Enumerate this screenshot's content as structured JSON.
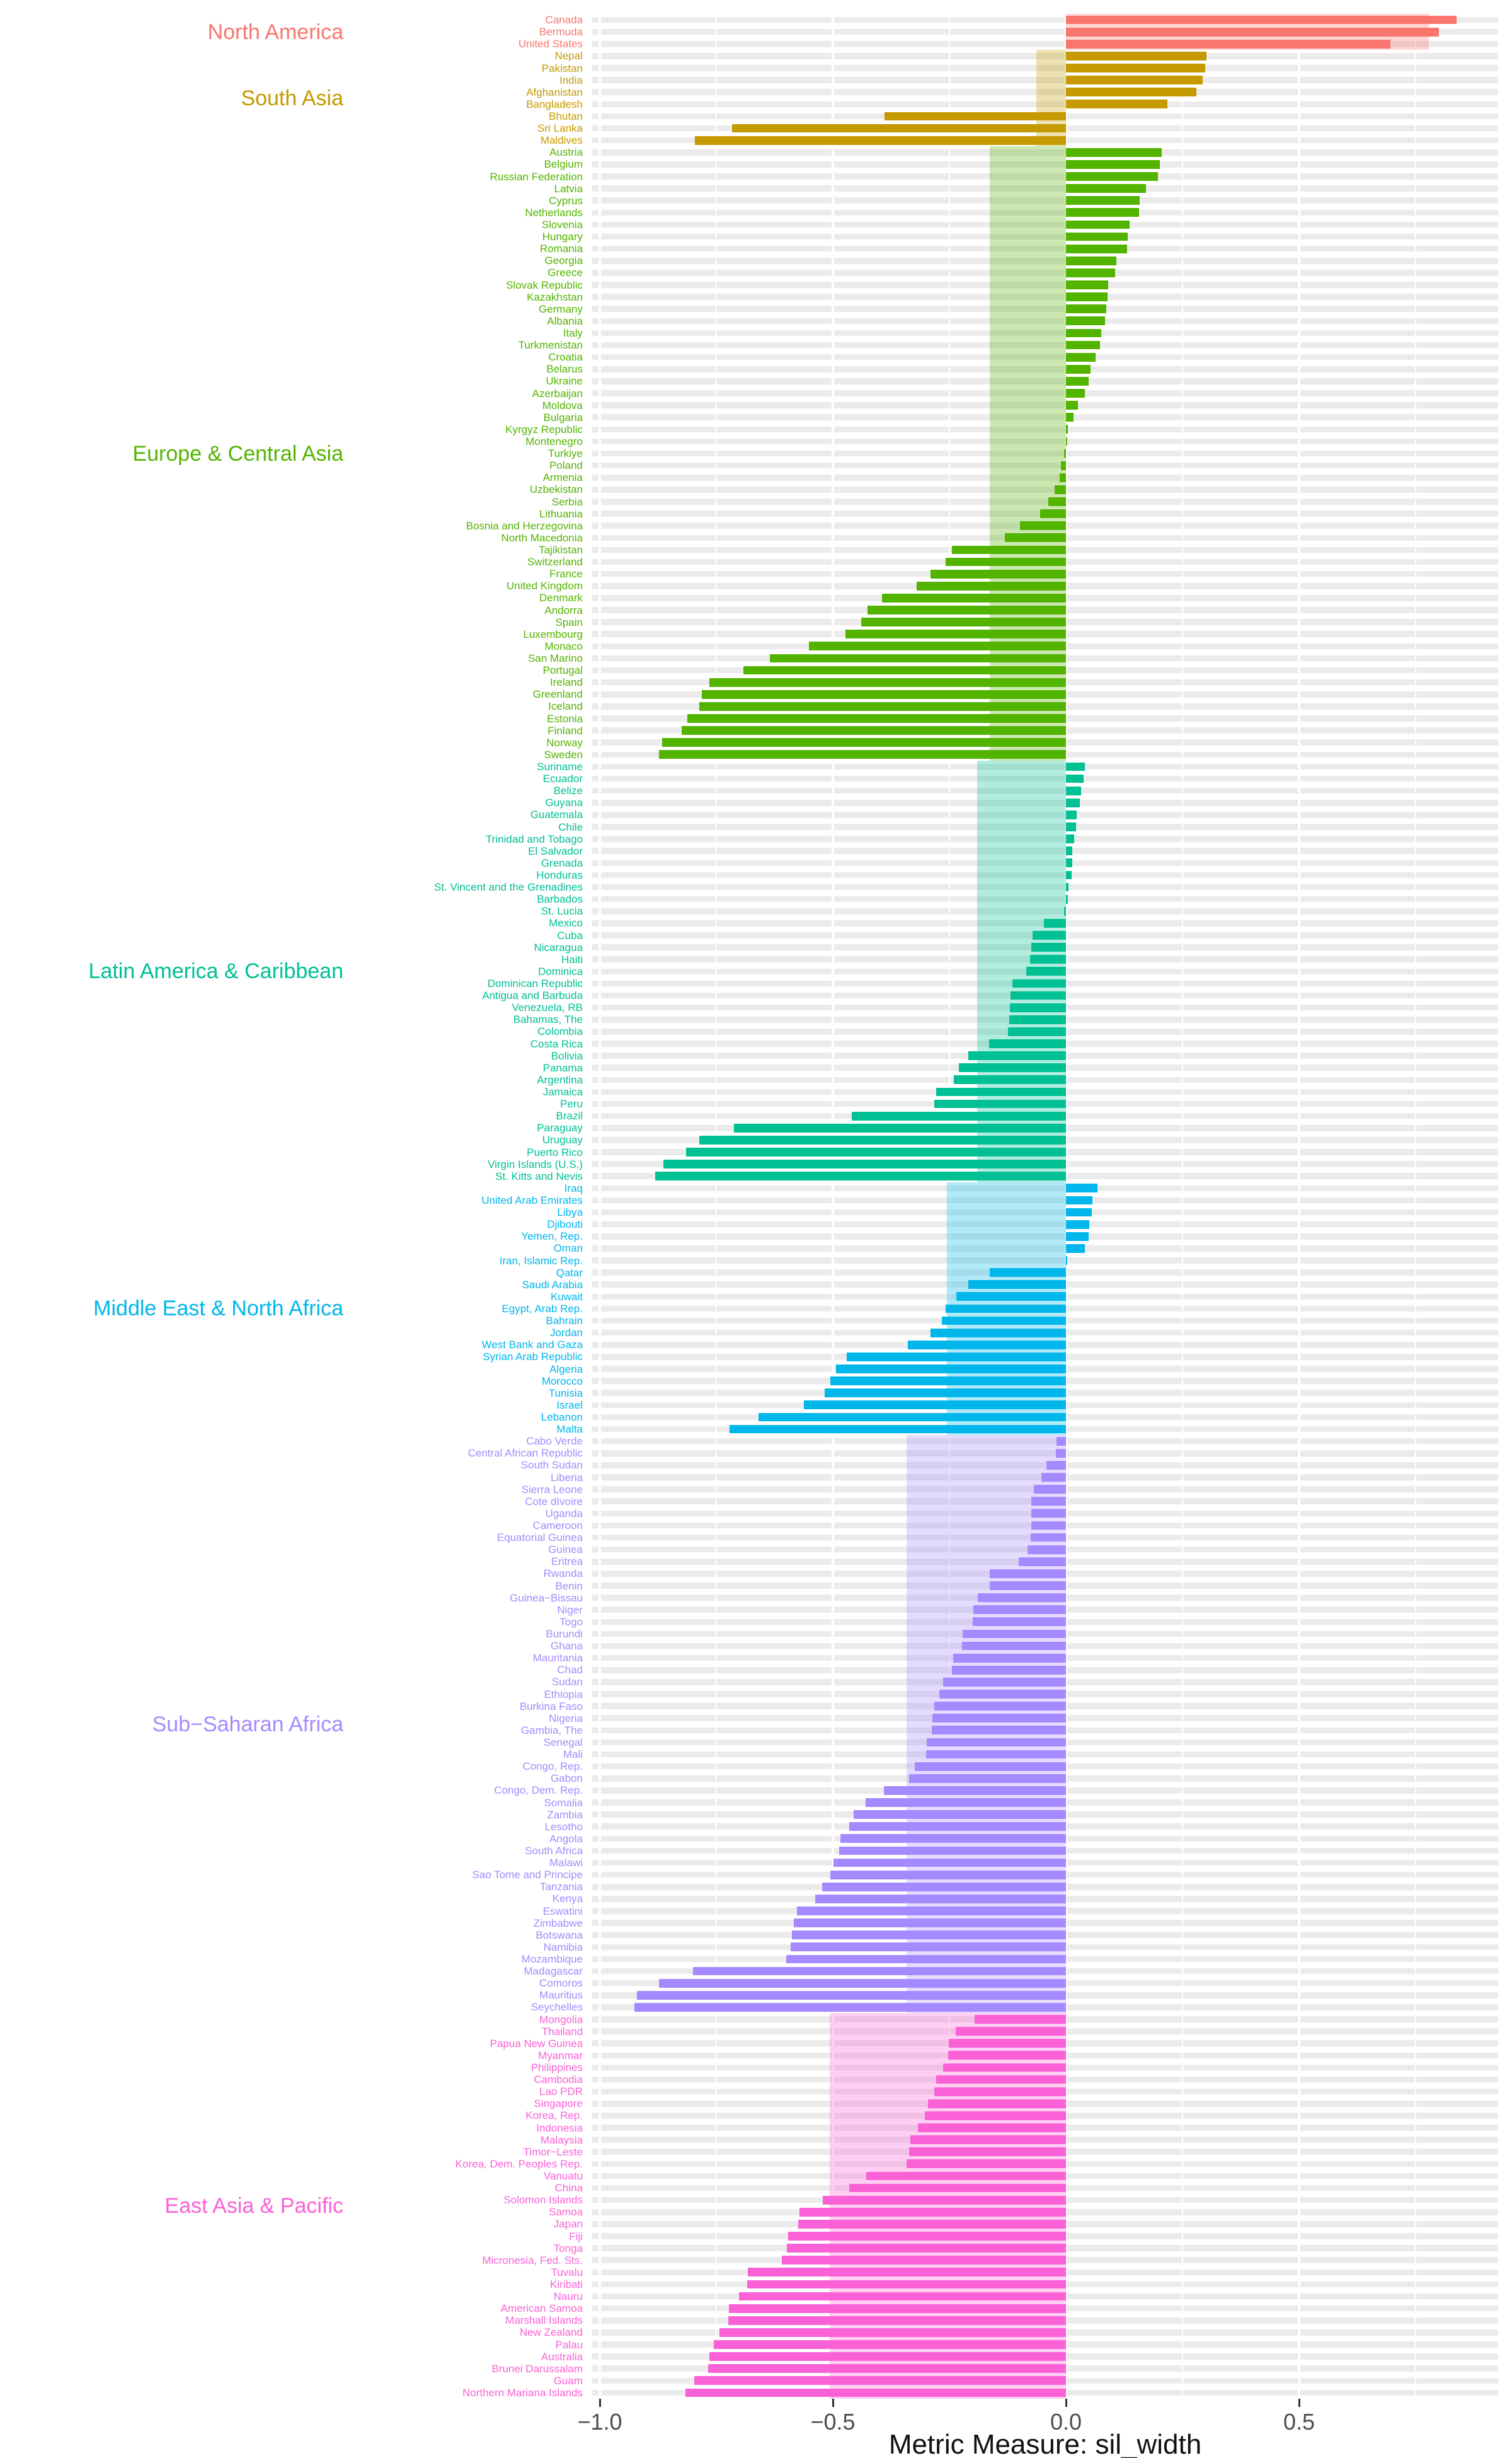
{
  "axis": {
    "title": "Metric Measure: sil_width",
    "ticks": [
      {
        "label": "−1.0",
        "value": -1.0
      },
      {
        "label": "−0.5",
        "value": -0.5
      },
      {
        "label": "0.0",
        "value": 0.0
      },
      {
        "label": "0.5",
        "value": 0.5
      }
    ],
    "minor_ticks": [
      -0.75,
      -0.25,
      0.25,
      0.75
    ]
  },
  "chart_data": {
    "type": "bar",
    "orientation": "horizontal",
    "title": "",
    "xlabel": "Metric Measure: sil_width",
    "ylabel": "",
    "xlim": [
      -1.016,
      0.927
    ],
    "x_ticks": [
      -1.0,
      -0.5,
      0.0,
      0.5
    ],
    "grid": "white-on-gray-stripes",
    "legend_position": "none",
    "panel_stripe_color": "#EBEBEB",
    "groups": [
      {
        "name": "North America",
        "color": "#F8766D",
        "avg_sil_width": 0.778,
        "countries": [
          {
            "label": "Canada",
            "value": 0.838
          },
          {
            "label": "Bermuda",
            "value": 0.8
          },
          {
            "label": "United States",
            "value": 0.696
          }
        ]
      },
      {
        "name": "South Asia",
        "color": "#C49A00",
        "avg_sil_width": -0.064,
        "countries": [
          {
            "label": "Nepal",
            "value": 0.302
          },
          {
            "label": "Pakistan",
            "value": 0.298
          },
          {
            "label": "India",
            "value": 0.293
          },
          {
            "label": "Afghanistan",
            "value": 0.28
          },
          {
            "label": "Bangladesh",
            "value": 0.218
          },
          {
            "label": "Bhutan",
            "value": -0.389
          },
          {
            "label": "Sri Lanka",
            "value": -0.716
          },
          {
            "label": "Maldives",
            "value": -0.796
          }
        ]
      },
      {
        "name": "Europe & Central Asia",
        "color": "#53B400",
        "avg_sil_width": -0.164,
        "countries": [
          {
            "label": "Austria",
            "value": 0.205
          },
          {
            "label": "Belgium",
            "value": 0.201
          },
          {
            "label": "Russian Federation",
            "value": 0.197
          },
          {
            "label": "Latvia",
            "value": 0.171
          },
          {
            "label": "Cyprus",
            "value": 0.158
          },
          {
            "label": "Netherlands",
            "value": 0.157
          },
          {
            "label": "Slovenia",
            "value": 0.137
          },
          {
            "label": "Hungary",
            "value": 0.133
          },
          {
            "label": "Romania",
            "value": 0.131
          },
          {
            "label": "Georgia",
            "value": 0.108
          },
          {
            "label": "Greece",
            "value": 0.106
          },
          {
            "label": "Slovak Republic",
            "value": 0.09
          },
          {
            "label": "Kazakhstan",
            "value": 0.089
          },
          {
            "label": "Germany",
            "value": 0.087
          },
          {
            "label": "Albania",
            "value": 0.084
          },
          {
            "label": "Italy",
            "value": 0.075
          },
          {
            "label": "Turkmenistan",
            "value": 0.073
          },
          {
            "label": "Croatia",
            "value": 0.063
          },
          {
            "label": "Belarus",
            "value": 0.053
          },
          {
            "label": "Ukraine",
            "value": 0.049
          },
          {
            "label": "Azerbaijan",
            "value": 0.041
          },
          {
            "label": "Moldova",
            "value": 0.025
          },
          {
            "label": "Bulgaria",
            "value": 0.016
          },
          {
            "label": "Kyrgyz Republic",
            "value": 0.004
          },
          {
            "label": "Montenegro",
            "value": 0.001
          },
          {
            "label": "Turkiye",
            "value": -0.004
          },
          {
            "label": "Poland",
            "value": -0.011
          },
          {
            "label": "Armenia",
            "value": -0.013
          },
          {
            "label": "Uzbekistan",
            "value": -0.024
          },
          {
            "label": "Serbia",
            "value": -0.038
          },
          {
            "label": "Lithuania",
            "value": -0.056
          },
          {
            "label": "Bosnia and Herzegovina",
            "value": -0.099
          },
          {
            "label": "North Macedonia",
            "value": -0.131
          },
          {
            "label": "Tajikistan",
            "value": -0.245
          },
          {
            "label": "Switzerland",
            "value": -0.258
          },
          {
            "label": "France",
            "value": -0.29
          },
          {
            "label": "United Kingdom",
            "value": -0.32
          },
          {
            "label": "Denmark",
            "value": -0.395
          },
          {
            "label": "Andorra",
            "value": -0.426
          },
          {
            "label": "Spain",
            "value": -0.439
          },
          {
            "label": "Luxembourg",
            "value": -0.473
          },
          {
            "label": "Monaco",
            "value": -0.552
          },
          {
            "label": "San Marino",
            "value": -0.635
          },
          {
            "label": "Portugal",
            "value": -0.692
          },
          {
            "label": "Ireland",
            "value": -0.765
          },
          {
            "label": "Greenland",
            "value": -0.781
          },
          {
            "label": "Iceland",
            "value": -0.787
          },
          {
            "label": "Estonia",
            "value": -0.812
          },
          {
            "label": "Finland",
            "value": -0.825
          },
          {
            "label": "Norway",
            "value": -0.866
          },
          {
            "label": "Sweden",
            "value": -0.873
          }
        ]
      },
      {
        "name": "Latin America & Caribbean",
        "color": "#00C094",
        "avg_sil_width": -0.19,
        "countries": [
          {
            "label": "Suriname",
            "value": 0.04
          },
          {
            "label": "Ecuador",
            "value": 0.038
          },
          {
            "label": "Belize",
            "value": 0.033
          },
          {
            "label": "Guyana",
            "value": 0.03
          },
          {
            "label": "Guatemala",
            "value": 0.023
          },
          {
            "label": "Chile",
            "value": 0.022
          },
          {
            "label": "Trinidad and Tobago",
            "value": 0.017
          },
          {
            "label": "El Salvador",
            "value": 0.014
          },
          {
            "label": "Grenada",
            "value": 0.013
          },
          {
            "label": "Honduras",
            "value": 0.012
          },
          {
            "label": "St. Vincent and the Grenadines",
            "value": 0.005
          },
          {
            "label": "Barbados",
            "value": 0.004
          },
          {
            "label": "St. Lucia",
            "value": -0.004
          },
          {
            "label": "Mexico",
            "value": -0.047
          },
          {
            "label": "Cuba",
            "value": -0.072
          },
          {
            "label": "Nicaragua",
            "value": -0.074
          },
          {
            "label": "Haiti",
            "value": -0.077
          },
          {
            "label": "Dominica",
            "value": -0.085
          },
          {
            "label": "Dominican Republic",
            "value": -0.115
          },
          {
            "label": "Antigua and Barbuda",
            "value": -0.119
          },
          {
            "label": "Venezuela, RB",
            "value": -0.12
          },
          {
            "label": "Bahamas, The",
            "value": -0.122
          },
          {
            "label": "Colombia",
            "value": -0.124
          },
          {
            "label": "Costa Rica",
            "value": -0.165
          },
          {
            "label": "Bolivia",
            "value": -0.21
          },
          {
            "label": "Panama",
            "value": -0.23
          },
          {
            "label": "Argentina",
            "value": -0.241
          },
          {
            "label": "Jamaica",
            "value": -0.278
          },
          {
            "label": "Peru",
            "value": -0.283
          },
          {
            "label": "Brazil",
            "value": -0.46
          },
          {
            "label": "Paraguay",
            "value": -0.712
          },
          {
            "label": "Uruguay",
            "value": -0.786
          },
          {
            "label": "Puerto Rico",
            "value": -0.815
          },
          {
            "label": "Virgin Islands (U.S.)",
            "value": -0.864
          },
          {
            "label": "St. Kitts and Nevis",
            "value": -0.881
          }
        ]
      },
      {
        "name": "Middle East & North Africa",
        "color": "#00B6EB",
        "avg_sil_width": -0.256,
        "countries": [
          {
            "label": "Iraq",
            "value": 0.067
          },
          {
            "label": "United Arab Emirates",
            "value": 0.057
          },
          {
            "label": "Libya",
            "value": 0.056
          },
          {
            "label": "Djibouti",
            "value": 0.05
          },
          {
            "label": "Yemen, Rep.",
            "value": 0.049
          },
          {
            "label": "Oman",
            "value": 0.041
          },
          {
            "label": "Iran, Islamic Rep.",
            "value": 0.003
          },
          {
            "label": "Qatar",
            "value": -0.163
          },
          {
            "label": "Saudi Arabia",
            "value": -0.21
          },
          {
            "label": "Kuwait",
            "value": -0.235
          },
          {
            "label": "Egypt, Arab Rep.",
            "value": -0.258
          },
          {
            "label": "Bahrain",
            "value": -0.266
          },
          {
            "label": "Jordan",
            "value": -0.291
          },
          {
            "label": "West Bank and Gaza",
            "value": -0.339
          },
          {
            "label": "Syrian Arab Republic",
            "value": -0.47
          },
          {
            "label": "Algeria",
            "value": -0.493
          },
          {
            "label": "Morocco",
            "value": -0.506
          },
          {
            "label": "Tunisia",
            "value": -0.517
          },
          {
            "label": "Israel",
            "value": -0.562
          },
          {
            "label": "Lebanon",
            "value": -0.659
          },
          {
            "label": "Malta",
            "value": -0.722
          }
        ]
      },
      {
        "name": "Sub−Saharan Africa",
        "color": "#A58AFF",
        "avg_sil_width": -0.342,
        "countries": [
          {
            "label": "Cabo Verde",
            "value": -0.02
          },
          {
            "label": "Central African Republic",
            "value": -0.021
          },
          {
            "label": "South Sudan",
            "value": -0.042
          },
          {
            "label": "Liberia",
            "value": -0.053
          },
          {
            "label": "Sierra Leone",
            "value": -0.069
          },
          {
            "label": "Cote dIvoire",
            "value": -0.074
          },
          {
            "label": "Uganda",
            "value": -0.075
          },
          {
            "label": "Cameroon",
            "value": -0.075
          },
          {
            "label": "Equatorial Guinea",
            "value": -0.076
          },
          {
            "label": "Guinea",
            "value": -0.083
          },
          {
            "label": "Eritrea",
            "value": -0.101
          },
          {
            "label": "Rwanda",
            "value": -0.163
          },
          {
            "label": "Benin",
            "value": -0.164
          },
          {
            "label": "Guinea−Bissau",
            "value": -0.189
          },
          {
            "label": "Niger",
            "value": -0.199
          },
          {
            "label": "Togo",
            "value": -0.2
          },
          {
            "label": "Burundi",
            "value": -0.222
          },
          {
            "label": "Ghana",
            "value": -0.223
          },
          {
            "label": "Mauritania",
            "value": -0.242
          },
          {
            "label": "Chad",
            "value": -0.245
          },
          {
            "label": "Sudan",
            "value": -0.264
          },
          {
            "label": "Ethiopia",
            "value": -0.272
          },
          {
            "label": "Burkina Faso",
            "value": -0.282
          },
          {
            "label": "Nigeria",
            "value": -0.287
          },
          {
            "label": "Gambia, The",
            "value": -0.288
          },
          {
            "label": "Senegal",
            "value": -0.299
          },
          {
            "label": "Mali",
            "value": -0.3
          },
          {
            "label": "Congo, Rep.",
            "value": -0.325
          },
          {
            "label": "Gabon",
            "value": -0.336
          },
          {
            "label": "Congo, Dem. Rep.",
            "value": -0.39
          },
          {
            "label": "Somalia",
            "value": -0.43
          },
          {
            "label": "Zambia",
            "value": -0.455
          },
          {
            "label": "Lesotho",
            "value": -0.465
          },
          {
            "label": "Angola",
            "value": -0.484
          },
          {
            "label": "South Africa",
            "value": -0.487
          },
          {
            "label": "Malawi",
            "value": -0.498
          },
          {
            "label": "Sao Tome and Principe",
            "value": -0.505
          },
          {
            "label": "Tanzania",
            "value": -0.523
          },
          {
            "label": "Kenya",
            "value": -0.538
          },
          {
            "label": "Eswatini",
            "value": -0.577
          },
          {
            "label": "Zimbabwe",
            "value": -0.584
          },
          {
            "label": "Botswana",
            "value": -0.588
          },
          {
            "label": "Namibia",
            "value": -0.59
          },
          {
            "label": "Mozambique",
            "value": -0.6
          },
          {
            "label": "Madagascar",
            "value": -0.8
          },
          {
            "label": "Comoros",
            "value": -0.873
          },
          {
            "label": "Mauritius",
            "value": -0.92
          },
          {
            "label": "Seychelles",
            "value": -0.926
          }
        ]
      },
      {
        "name": "East Asia & Pacific",
        "color": "#FB61D7",
        "avg_sil_width": -0.507,
        "countries": [
          {
            "label": "Mongolia",
            "value": -0.196
          },
          {
            "label": "Thailand",
            "value": -0.237
          },
          {
            "label": "Papua New Guinea",
            "value": -0.252
          },
          {
            "label": "Myanmar",
            "value": -0.253
          },
          {
            "label": "Philippines",
            "value": -0.264
          },
          {
            "label": "Cambodia",
            "value": -0.278
          },
          {
            "label": "Lao PDR",
            "value": -0.282
          },
          {
            "label": "Singapore",
            "value": -0.296
          },
          {
            "label": "Korea, Rep.",
            "value": -0.303
          },
          {
            "label": "Indonesia",
            "value": -0.318
          },
          {
            "label": "Malaysia",
            "value": -0.334
          },
          {
            "label": "Timor−Leste",
            "value": -0.336
          },
          {
            "label": "Korea, Dem. Peoples Rep.",
            "value": -0.342
          },
          {
            "label": "Vanuatu",
            "value": -0.429
          },
          {
            "label": "China",
            "value": -0.465
          },
          {
            "label": "Solomon Islands",
            "value": -0.522
          },
          {
            "label": "Samoa",
            "value": -0.571
          },
          {
            "label": "Japan",
            "value": -0.575
          },
          {
            "label": "Fiji",
            "value": -0.596
          },
          {
            "label": "Tonga",
            "value": -0.598
          },
          {
            "label": "Micronesia, Fed. Sts.",
            "value": -0.609
          },
          {
            "label": "Tuvalu",
            "value": -0.682
          },
          {
            "label": "Kiribati",
            "value": -0.684
          },
          {
            "label": "Nauru",
            "value": -0.702
          },
          {
            "label": "American Samoa",
            "value": -0.723
          },
          {
            "label": "Marshall Islands",
            "value": -0.724
          },
          {
            "label": "New Zealand",
            "value": -0.743
          },
          {
            "label": "Palau",
            "value": -0.756
          },
          {
            "label": "Australia",
            "value": -0.765
          },
          {
            "label": "Brunei Darussalam",
            "value": -0.767
          },
          {
            "label": "Guam",
            "value": -0.797
          },
          {
            "label": "Northern Mariana Islands",
            "value": -0.816
          }
        ]
      }
    ]
  }
}
